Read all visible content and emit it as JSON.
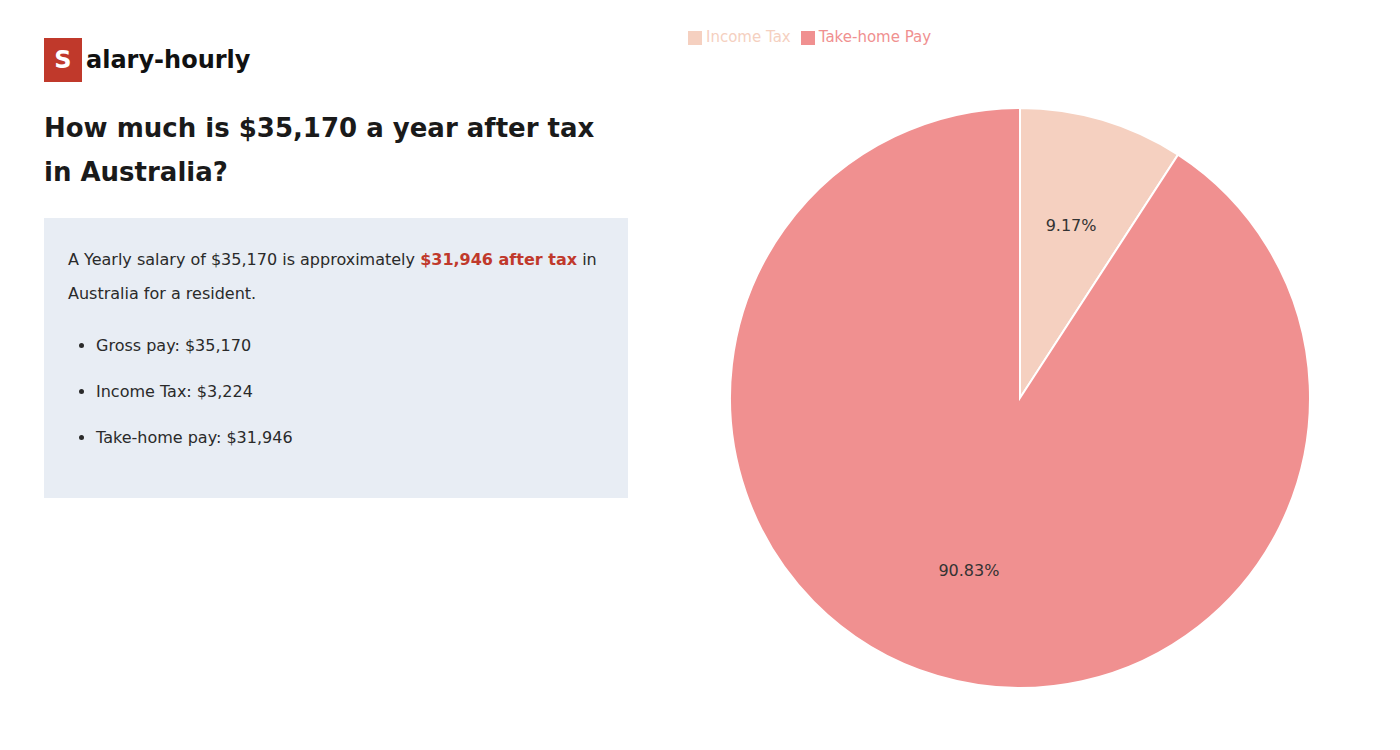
{
  "chart_data": {
    "type": "pie",
    "title": "How much is $35,170 a year after tax in Australia?",
    "categories": [
      "Income Tax",
      "Take-home Pay"
    ],
    "values": [
      9.17,
      90.83
    ],
    "value_labels": [
      "9.17%",
      "90.83%"
    ],
    "colors": [
      "#f5d0c0",
      "#f09090"
    ],
    "data_labels": true,
    "legend": "top",
    "annotations": [
      {
        "text": "S",
        "color": "#c0392b"
      },
      {
        "text": "alary-hourly"
      },
      {
        "text": "A Yearly salary of $35,170 is approximately "
      },
      {
        "text": "$31,946 after tax",
        "color": "#c0392b"
      },
      {
        "text": " in"
      },
      {
        "text": "Australia for a resident."
      },
      {
        "text": "Gross pay: $35,170"
      },
      {
        "text": "Income Tax: $3,224"
      },
      {
        "text": "Take-home pay: $31,946"
      }
    ]
  }
}
